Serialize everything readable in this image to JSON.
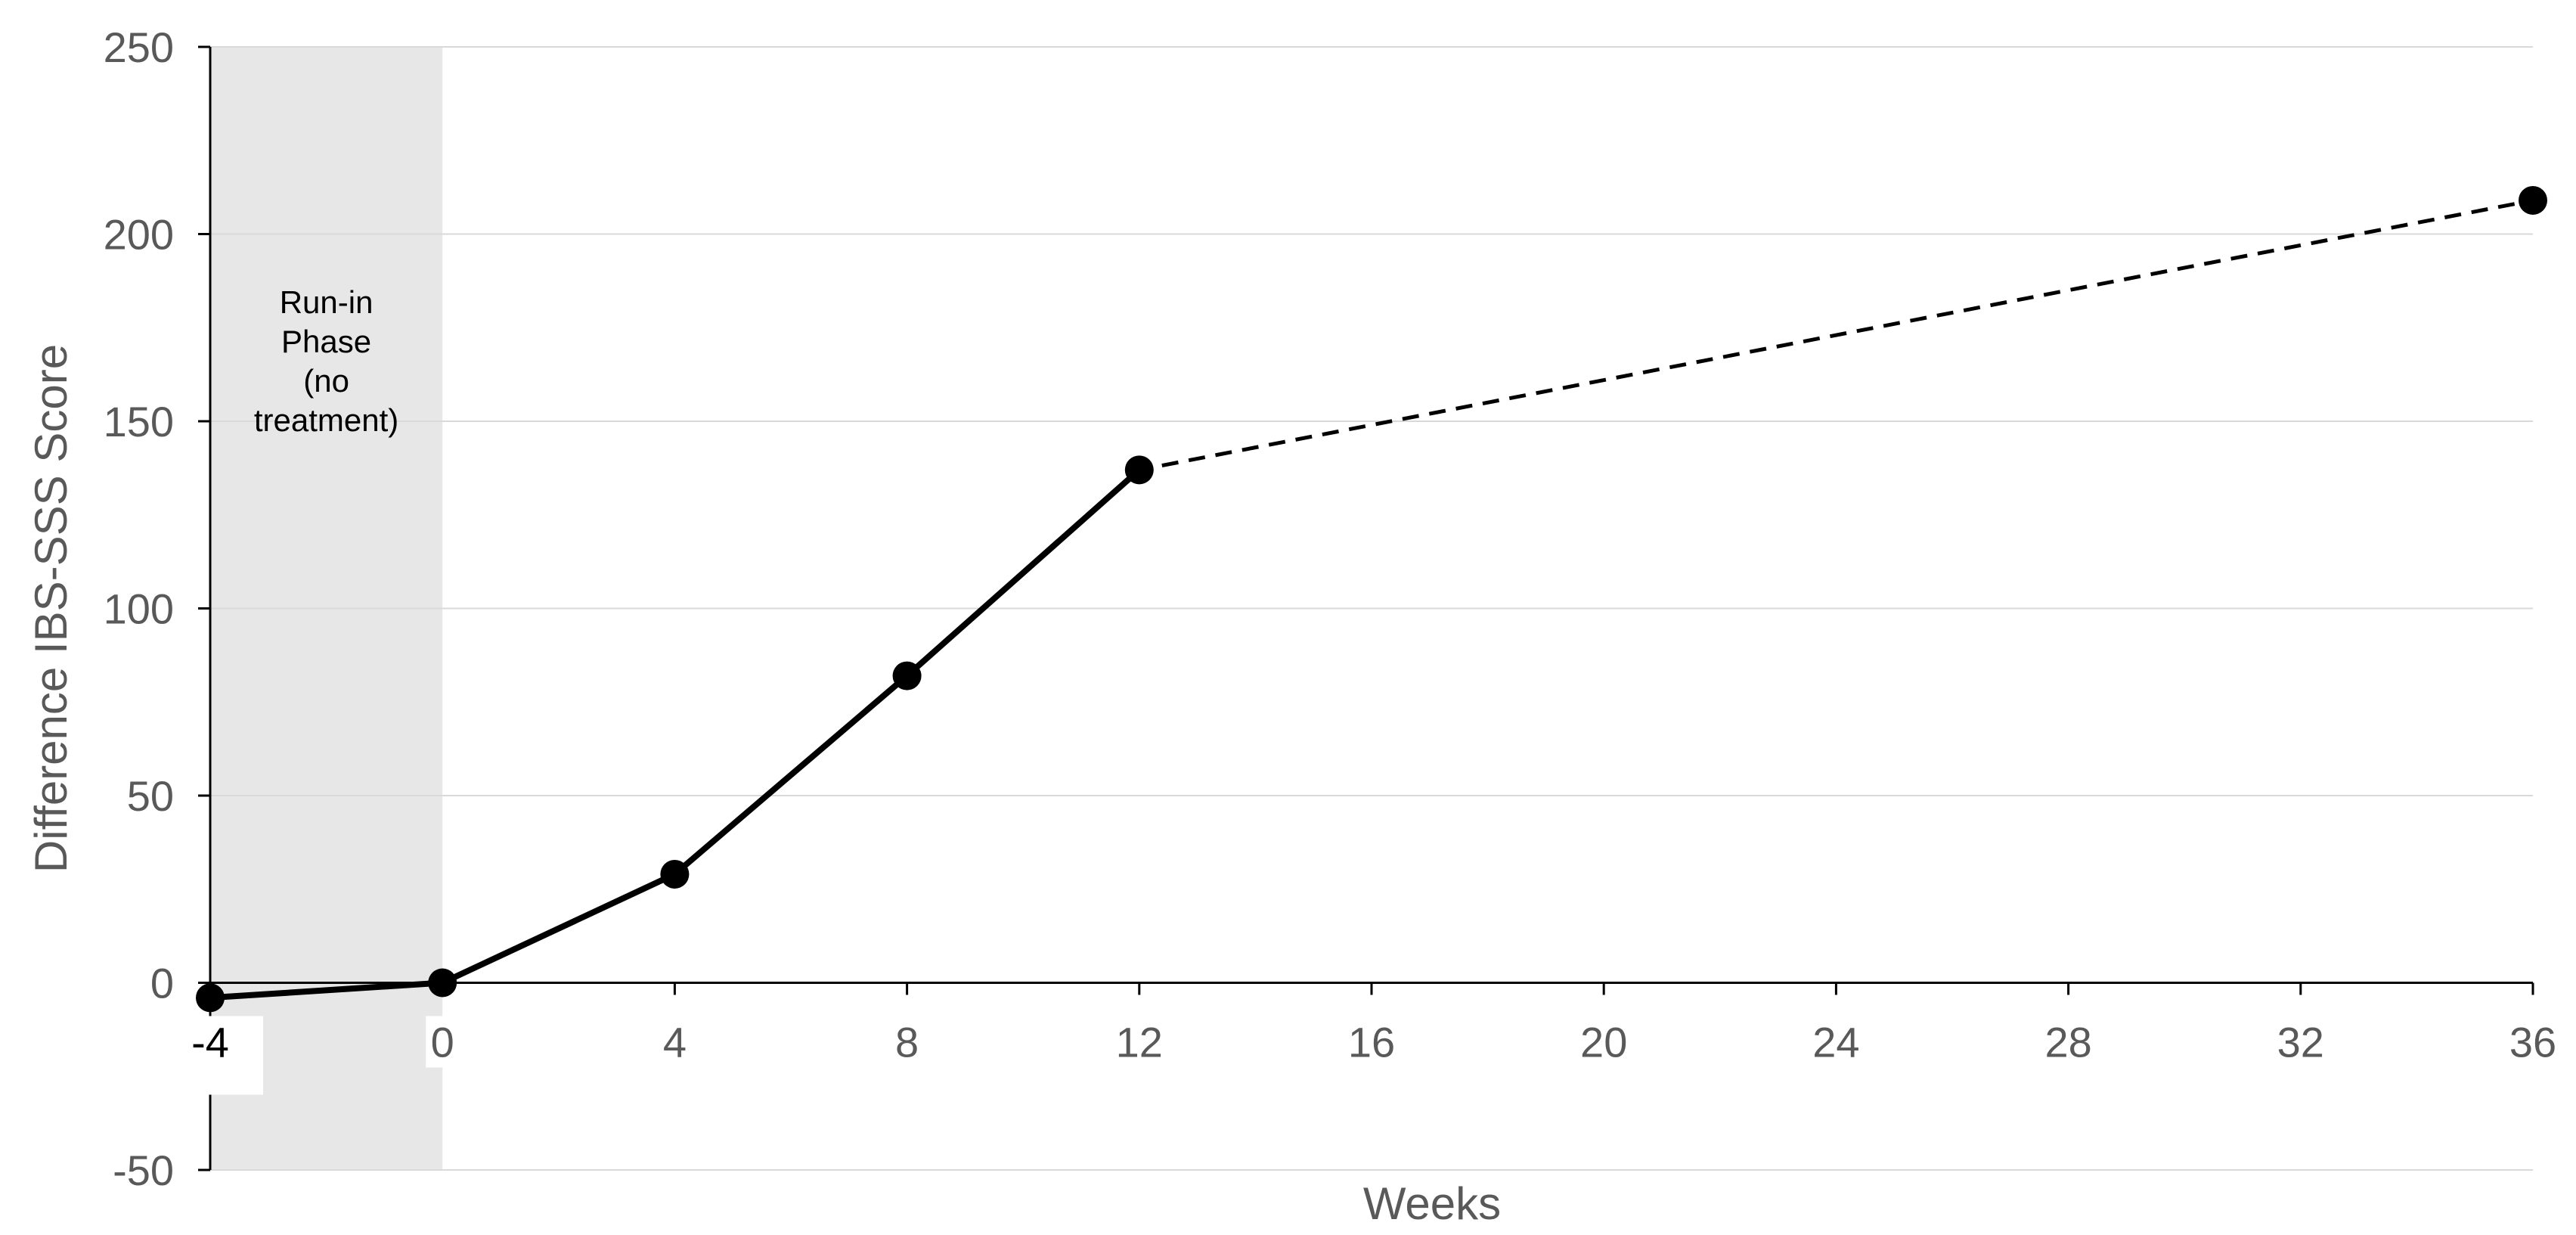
{
  "chart_data": {
    "type": "line",
    "xlabel": "Weeks",
    "ylabel": "Difference IBS-SSS Score",
    "xlim": [
      -4,
      36
    ],
    "ylim": [
      -50,
      250
    ],
    "x_ticks": [
      -4,
      0,
      4,
      8,
      12,
      16,
      20,
      24,
      28,
      32,
      36
    ],
    "y_ticks": [
      -50,
      0,
      50,
      100,
      150,
      200,
      250
    ],
    "grid": "horizontal",
    "shaded_region": {
      "x_start": -4,
      "x_end": 0,
      "label": [
        "Run-in",
        "Phase",
        "(no",
        "treatment)"
      ]
    },
    "series": [
      {
        "style": "solid",
        "points": [
          {
            "x": -4,
            "y": -4
          },
          {
            "x": 0,
            "y": 0
          },
          {
            "x": 4,
            "y": 29
          },
          {
            "x": 8,
            "y": 82
          },
          {
            "x": 12,
            "y": 137
          }
        ]
      },
      {
        "style": "dashed",
        "connects": [
          12,
          36
        ],
        "points": [
          {
            "x": 36,
            "y": 209
          }
        ]
      }
    ],
    "colors": {
      "line": "#000000",
      "grid": "#d9d9d9",
      "axis": "#000000",
      "shade": "#e7e7e7",
      "tick_text": "#595959"
    }
  }
}
